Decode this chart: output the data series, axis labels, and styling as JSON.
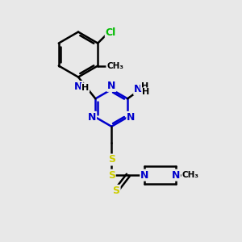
{
  "background_color": "#e8e8e8",
  "bond_color": "#000000",
  "N_color": "#0000cc",
  "S_color": "#cccc00",
  "Cl_color": "#00bb00",
  "C_color": "#000000",
  "bond_width": 1.8,
  "figsize": [
    3.0,
    3.0
  ],
  "dpi": 100,
  "xlim": [
    0,
    10
  ],
  "ylim": [
    0,
    10
  ]
}
